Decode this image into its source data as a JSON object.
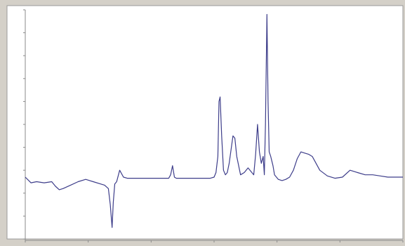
{
  "chart_data": {
    "type": "line",
    "title": "",
    "xlabel": "",
    "ylabel": "",
    "xlim": [
      0,
      100
    ],
    "ylim": [
      0,
      100
    ],
    "grid": false,
    "legend": "none",
    "series": [
      {
        "color": "#3d3d8a",
        "x": [
          0,
          1.5,
          3,
          5,
          7,
          8,
          9,
          10,
          12,
          14,
          16,
          18,
          20,
          21,
          22,
          22.5,
          23,
          23.3,
          23.7,
          24.2,
          25,
          26,
          27,
          28,
          30,
          33,
          36,
          38,
          38.5,
          39,
          39.5,
          40,
          42,
          45,
          47,
          49,
          50,
          50.5,
          51,
          51.3,
          51.6,
          52,
          52.5,
          53,
          53.5,
          54,
          55,
          55.5,
          56,
          57,
          58,
          59,
          60,
          60.5,
          61,
          61.5,
          62,
          62.5,
          63,
          63.3,
          63.6,
          64,
          64.3,
          64.6,
          65,
          65.3,
          65.6,
          66,
          67,
          68,
          69,
          70,
          71,
          72,
          73,
          74,
          75,
          76,
          77,
          78,
          80,
          82,
          84,
          86,
          88,
          90,
          92,
          94,
          96,
          98,
          100
        ],
        "y": [
          27,
          24.5,
          25,
          24.5,
          25,
          23,
          21.5,
          22,
          23.5,
          25,
          26,
          25,
          24,
          23.5,
          22,
          15,
          5,
          16,
          24,
          25,
          30,
          27,
          26.5,
          26.5,
          26.5,
          26.5,
          26.5,
          26.5,
          28,
          32,
          27,
          26.5,
          26.5,
          26.5,
          26.5,
          26.5,
          27,
          29,
          36,
          60,
          62,
          45,
          30,
          28,
          29,
          33,
          45,
          44,
          36,
          28,
          29,
          31,
          29,
          28,
          37,
          50,
          38,
          33,
          36,
          28,
          50,
          98,
          60,
          38,
          36,
          34,
          32,
          28,
          26,
          25.5,
          26,
          27,
          30,
          35,
          38,
          37.5,
          37,
          36,
          33,
          30,
          27.5,
          26.5,
          27,
          30,
          29,
          28,
          28,
          27.5,
          27,
          27,
          27
        ]
      }
    ]
  }
}
